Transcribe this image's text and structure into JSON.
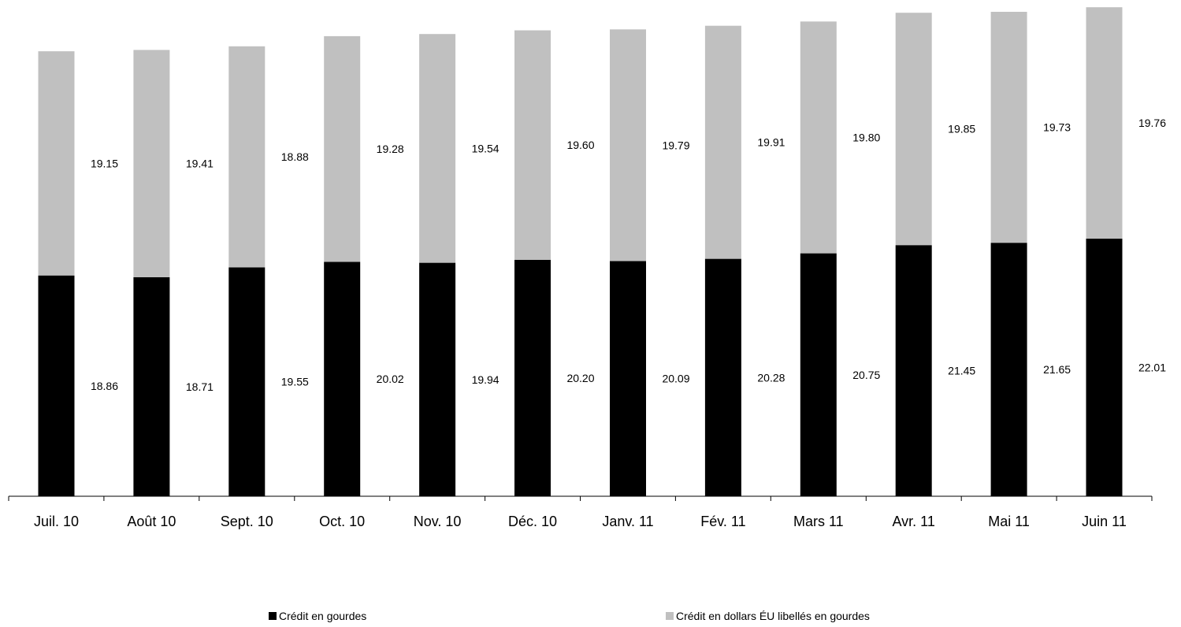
{
  "chart_data": {
    "type": "bar",
    "stacked": true,
    "categories": [
      "Juil. 10",
      "Août 10",
      "Sept. 10",
      "Oct. 10",
      "Nov. 10",
      "Déc. 10",
      "Janv. 11",
      "Fév. 11",
      "Mars 11",
      "Avr. 11",
      "Mai 11",
      "Juin 11"
    ],
    "series": [
      {
        "name": "Crédit en gourdes",
        "color": "#000000",
        "values": [
          18.86,
          18.71,
          19.55,
          20.02,
          19.94,
          20.2,
          20.09,
          20.28,
          20.75,
          21.45,
          21.65,
          22.01
        ],
        "labels": [
          "18.86",
          "18.71",
          "19.55",
          "20.02",
          "19.94",
          "20.20",
          "20.09",
          "20.28",
          "20.75",
          "21.45",
          "21.65",
          "22.01"
        ]
      },
      {
        "name": "Crédit en dollars ÉU libellés en gourdes",
        "color": "#c0c0c0",
        "values": [
          19.15,
          19.41,
          18.88,
          19.28,
          19.54,
          19.6,
          19.79,
          19.91,
          19.8,
          19.85,
          19.73,
          19.76
        ],
        "labels": [
          "19.15",
          "19.41",
          "18.88",
          "19.28",
          "19.54",
          "19.60",
          "19.79",
          "19.91",
          "19.80",
          "19.85",
          "19.73",
          "19.76"
        ]
      }
    ],
    "ylim": [
      0,
      41.85
    ],
    "grid": false,
    "legend_position": "bottom"
  }
}
